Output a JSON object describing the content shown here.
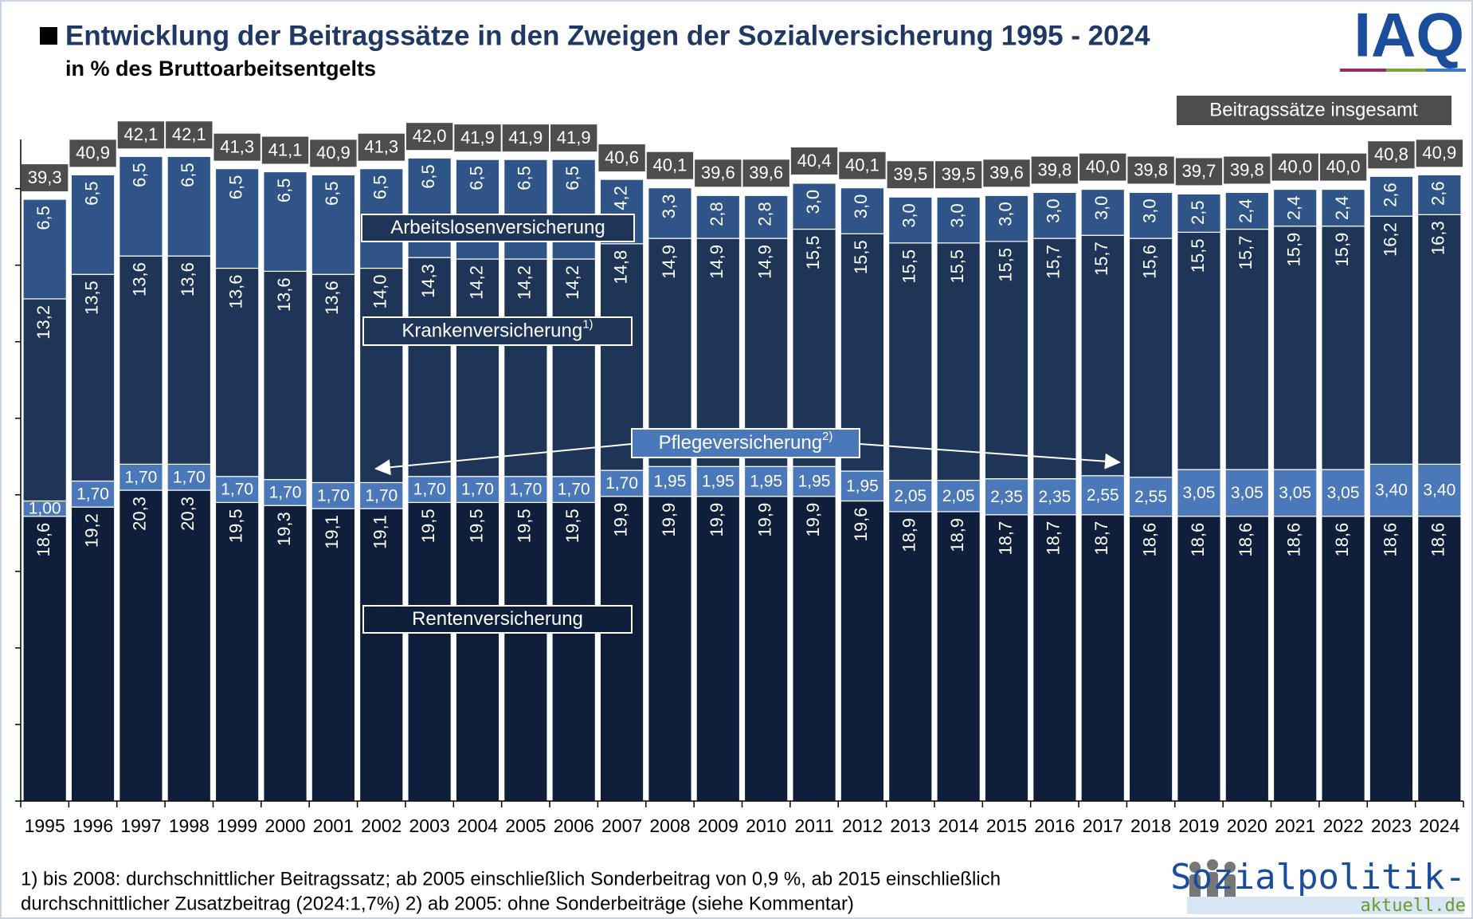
{
  "chart_data": {
    "type": "stacked_bar",
    "title": "Entwicklung der Beitragssätze in den Zweigen der Sozialversicherung 1995 - 2024",
    "subtitle": "in % des Bruttoarbeitsentgelts",
    "logo": "IAQ",
    "source_logo": {
      "name": "Sozialpolitik-",
      "domain": "aktuell.de"
    },
    "footnotes": [
      "1) bis 2008: durchschnittlicher Beitragssatz; ab 2005 einschließlich Sonderbeitrag von 0,9 %, ab 2015 einschließlich",
      "durchschnittlicher Zusatzbeitrag (2024:1,7%) 2) ab 2005: ohne Sonderbeiträge (siehe Kommentar)"
    ],
    "categories": [
      "1995",
      "1996",
      "1997",
      "1998",
      "1999",
      "2000",
      "2001",
      "2002",
      "2003",
      "2004",
      "2005",
      "2006",
      "2007",
      "2008",
      "2009",
      "2010",
      "2011",
      "2012",
      "2013",
      "2014",
      "2015",
      "2016",
      "2017",
      "2018",
      "2019",
      "2020",
      "2021",
      "2022",
      "2023",
      "2024"
    ],
    "ylim": [
      0,
      43
    ],
    "yticks": [
      0,
      5,
      10,
      15,
      20,
      25,
      30,
      35,
      40
    ],
    "series": [
      {
        "name": "Rentenversicherung",
        "color": "#0f1e3a",
        "values": [
          18.6,
          19.2,
          20.3,
          20.3,
          19.5,
          19.3,
          19.1,
          19.1,
          19.5,
          19.5,
          19.5,
          19.5,
          19.9,
          19.9,
          19.9,
          19.9,
          19.9,
          19.6,
          18.9,
          18.9,
          18.7,
          18.7,
          18.7,
          18.6,
          18.6,
          18.6,
          18.6,
          18.6,
          18.6,
          18.6
        ],
        "value_labels": [
          "18,6",
          "19,2",
          "20,3",
          "20,3",
          "19,5",
          "19,3",
          "19,1",
          "19,1",
          "19,5",
          "19,5",
          "19,5",
          "19,5",
          "19,9",
          "19,9",
          "19,9",
          "19,9",
          "19,9",
          "19,6",
          "18,9",
          "18,9",
          "18,7",
          "18,7",
          "18,7",
          "18,6",
          "18,6",
          "18,6",
          "18,6",
          "18,6",
          "18,6",
          "18,6"
        ]
      },
      {
        "name": "Pflegeversicherung",
        "footnote_mark": "2)",
        "color": "#4a78b8",
        "values": [
          1.0,
          1.7,
          1.7,
          1.7,
          1.7,
          1.7,
          1.7,
          1.7,
          1.7,
          1.7,
          1.7,
          1.7,
          1.7,
          1.95,
          1.95,
          1.95,
          1.95,
          1.95,
          2.05,
          2.05,
          2.35,
          2.35,
          2.55,
          2.55,
          3.05,
          3.05,
          3.05,
          3.05,
          3.4,
          3.4
        ],
        "value_labels": [
          "1,00",
          "1,70",
          "1,70",
          "1,70",
          "1,70",
          "1,70",
          "1,70",
          "1,70",
          "1,70",
          "1,70",
          "1,70",
          "1,70",
          "1,70",
          "1,95",
          "1,95",
          "1,95",
          "1,95",
          "1,95",
          "2,05",
          "2,05",
          "2,35",
          "2,35",
          "2,55",
          "2,55",
          "3,05",
          "3,05",
          "3,05",
          "3,05",
          "3,40",
          "3,40"
        ]
      },
      {
        "name": "Krankenversicherung",
        "footnote_mark": "1)",
        "color": "#1f3557",
        "values": [
          13.2,
          13.5,
          13.6,
          13.6,
          13.6,
          13.6,
          13.6,
          14.0,
          14.3,
          14.2,
          14.2,
          14.2,
          14.8,
          14.9,
          14.9,
          14.9,
          15.5,
          15.5,
          15.5,
          15.5,
          15.5,
          15.7,
          15.7,
          15.6,
          15.5,
          15.7,
          15.9,
          15.9,
          16.2,
          16.3
        ],
        "value_labels": [
          "13,2",
          "13,5",
          "13,6",
          "13,6",
          "13,6",
          "13,6",
          "13,6",
          "14,0",
          "14,3",
          "14,2",
          "14,2",
          "14,2",
          "14,8",
          "14,9",
          "14,9",
          "14,9",
          "15,5",
          "15,5",
          "15,5",
          "15,5",
          "15,5",
          "15,7",
          "15,7",
          "15,6",
          "15,5",
          "15,7",
          "15,9",
          "15,9",
          "16,2",
          "16,3"
        ]
      },
      {
        "name": "Arbeitslosenversicherung",
        "color": "#2f5488",
        "values": [
          6.5,
          6.5,
          6.5,
          6.5,
          6.5,
          6.5,
          6.5,
          6.5,
          6.5,
          6.5,
          6.5,
          6.5,
          4.2,
          3.3,
          2.8,
          2.8,
          3.0,
          3.0,
          3.0,
          3.0,
          3.0,
          3.0,
          3.0,
          3.0,
          2.5,
          2.4,
          2.4,
          2.4,
          2.6,
          2.6
        ],
        "value_labels": [
          "6,5",
          "6,5",
          "6,5",
          "6,5",
          "6,5",
          "6,5",
          "6,5",
          "6,5",
          "6,5",
          "6,5",
          "6,5",
          "6,5",
          "4,2",
          "3,3",
          "2,8",
          "2,8",
          "3,0",
          "3,0",
          "3,0",
          "3,0",
          "3,0",
          "3,0",
          "3,0",
          "3,0",
          "2,5",
          "2,4",
          "2,4",
          "2,4",
          "2,6",
          "2,6"
        ]
      }
    ],
    "totals": {
      "name": "Beitragssätze insgesamt",
      "color": "#4d4d4d",
      "values": [
        39.3,
        40.9,
        42.1,
        42.1,
        41.3,
        41.1,
        40.9,
        41.3,
        42.0,
        41.9,
        41.9,
        41.9,
        40.6,
        40.1,
        39.6,
        39.6,
        40.4,
        40.1,
        39.5,
        39.5,
        39.6,
        39.8,
        40.0,
        39.8,
        39.7,
        39.8,
        40.0,
        40.0,
        40.8,
        40.9
      ],
      "value_labels": [
        "39,3",
        "40,9",
        "42,1",
        "42,1",
        "41,3",
        "41,1",
        "40,9",
        "41,3",
        "42,0",
        "41,9",
        "41,9",
        "41,9",
        "40,6",
        "40,1",
        "39,6",
        "39,6",
        "40,4",
        "40,1",
        "39,5",
        "39,5",
        "39,6",
        "39,8",
        "40,0",
        "39,8",
        "39,7",
        "39,8",
        "40,0",
        "40,0",
        "40,8",
        "40,9"
      ]
    }
  }
}
